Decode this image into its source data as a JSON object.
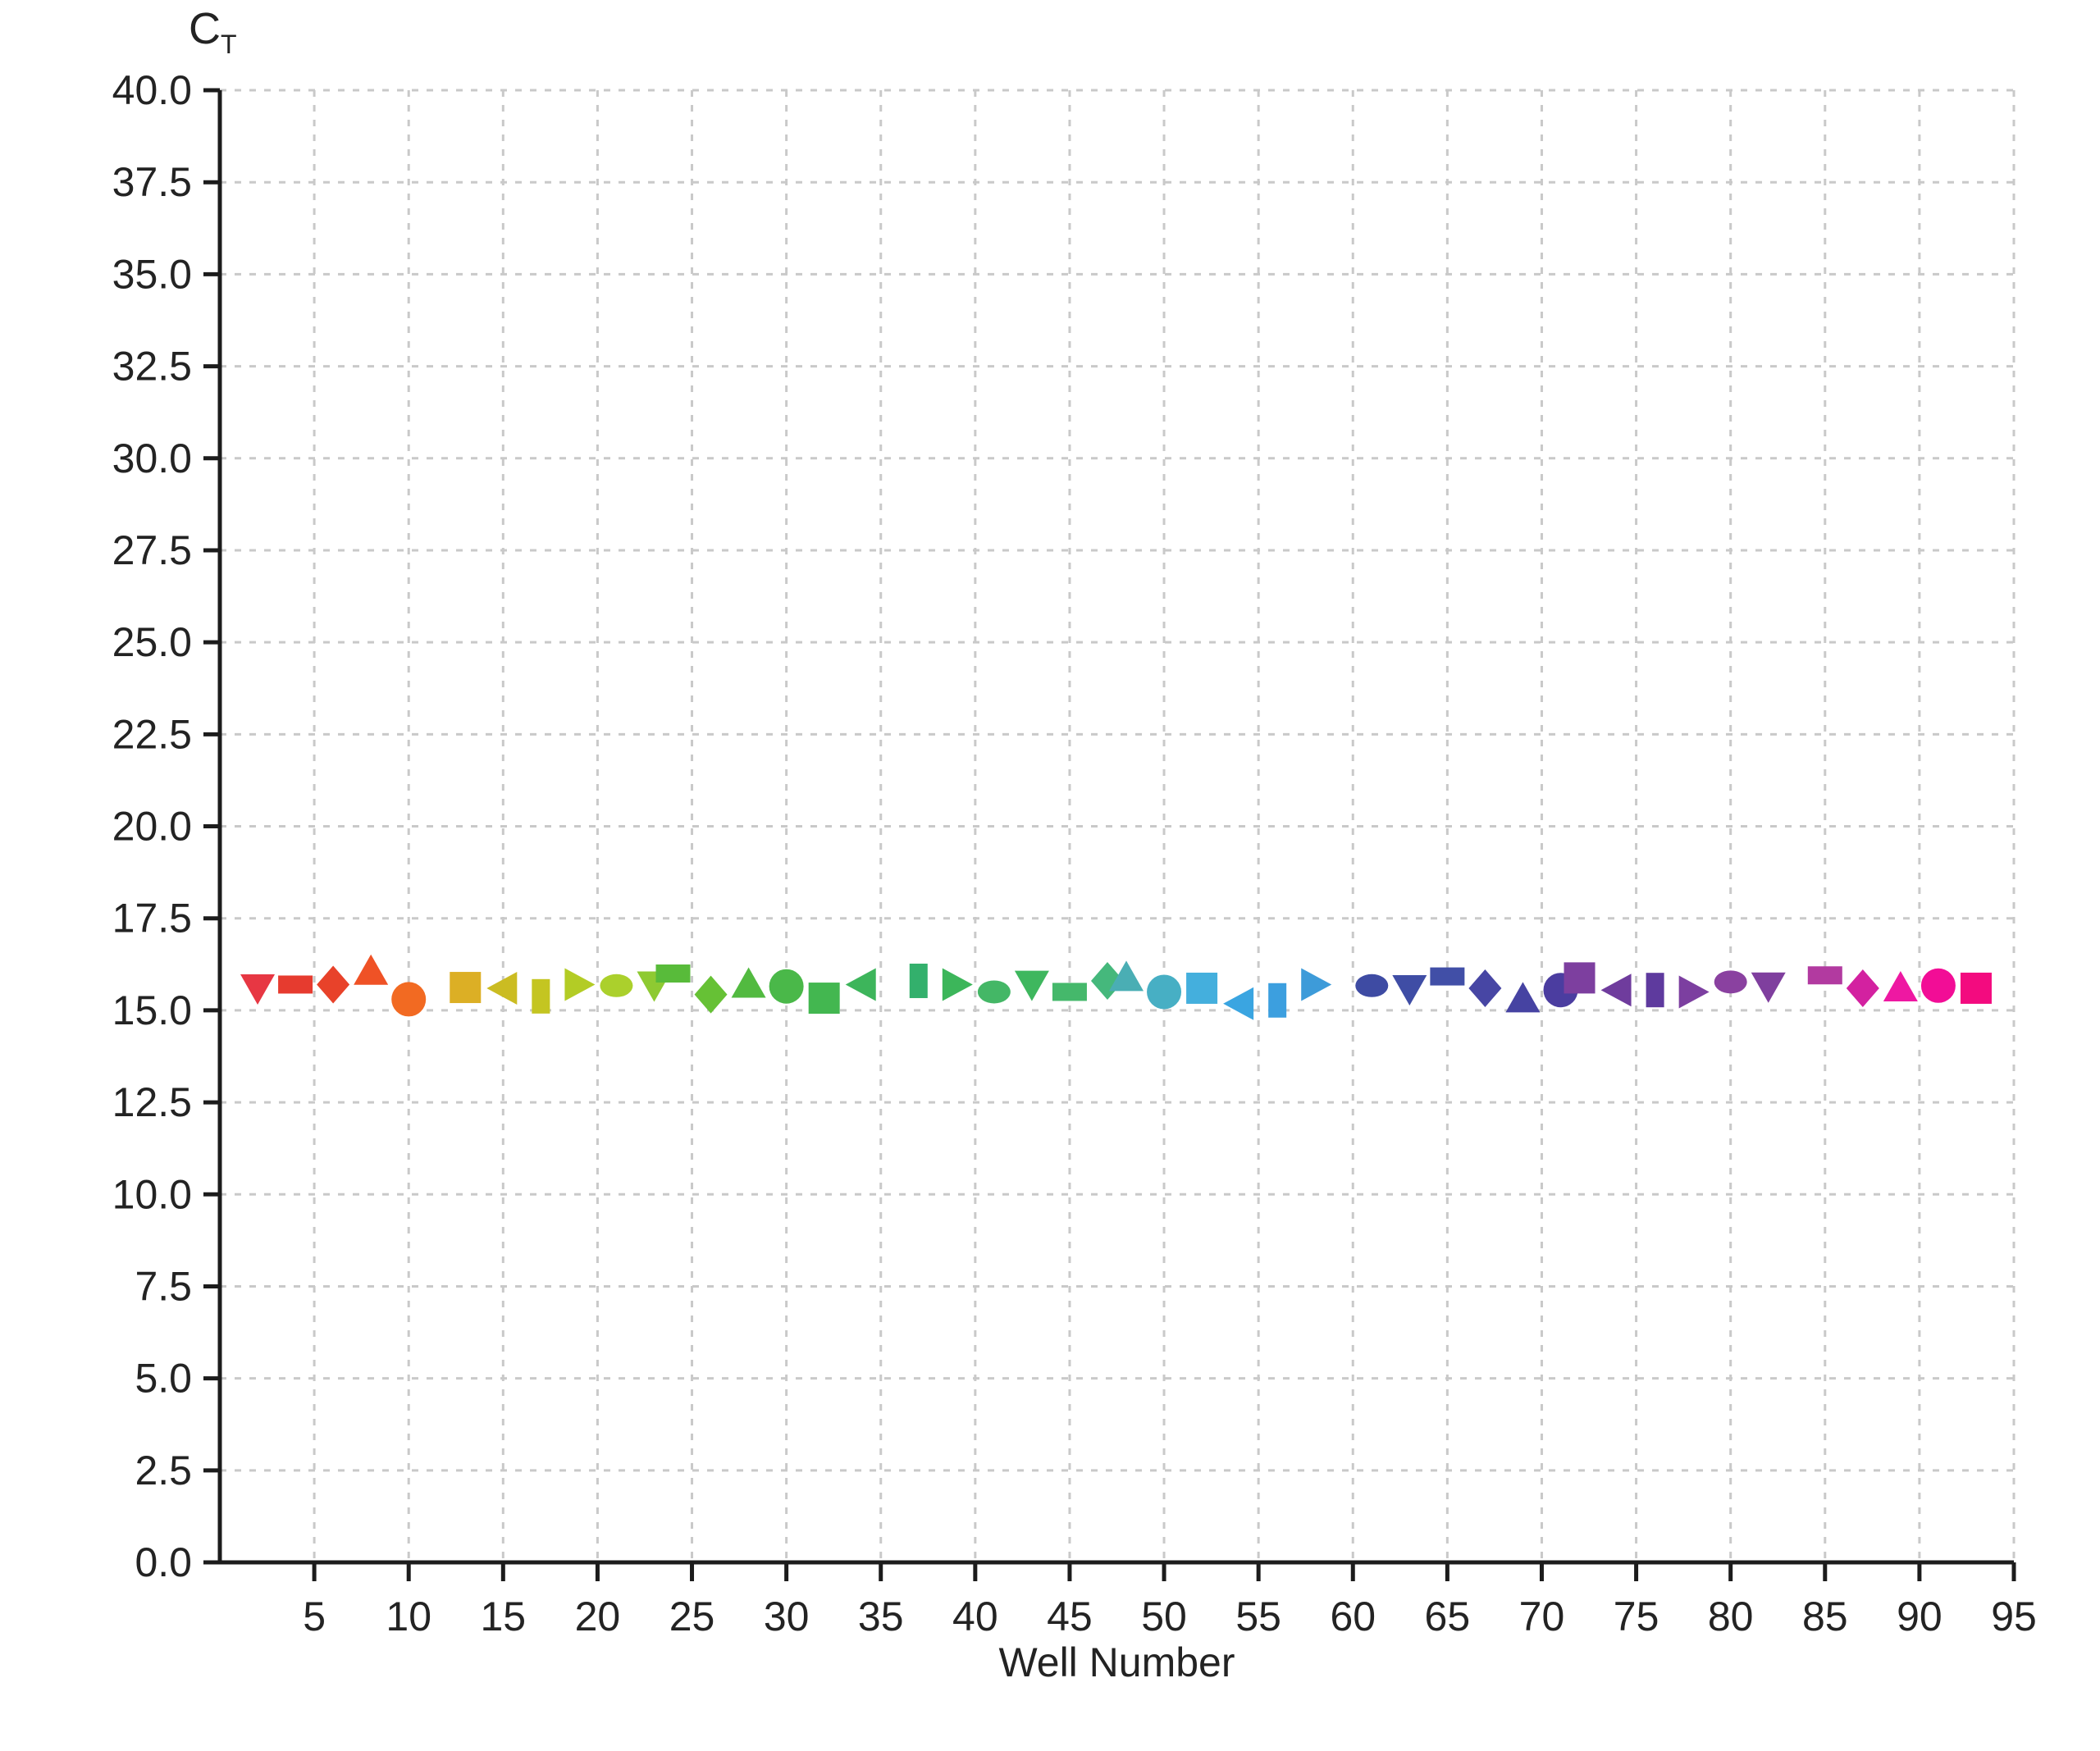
{
  "chart_data": {
    "type": "scatter",
    "title": "",
    "xlabel": "Well Number",
    "ylabel": "CT",
    "ylabel_main": "C",
    "ylabel_sub": "T",
    "xlim": [
      0,
      95
    ],
    "ylim": [
      0,
      40
    ],
    "grid": "dashed",
    "legend": "none",
    "x_ticks": [
      5,
      10,
      15,
      20,
      25,
      30,
      35,
      40,
      45,
      50,
      55,
      60,
      65,
      70,
      75,
      80,
      85,
      90,
      95
    ],
    "x_tick_labels": [
      "5",
      "10",
      "15",
      "20",
      "25",
      "30",
      "35",
      "40",
      "45",
      "50",
      "55",
      "60",
      "65",
      "70",
      "75",
      "80",
      "85",
      "90",
      "95"
    ],
    "y_ticks": [
      0,
      2.5,
      5,
      7.5,
      10,
      12.5,
      15,
      17.5,
      20,
      22.5,
      25,
      27.5,
      30,
      32.5,
      35,
      37.5,
      40
    ],
    "y_tick_labels": [
      "0.0",
      "2.5",
      "5.0",
      "7.5",
      "10.0",
      "12.5",
      "15.0",
      "17.5",
      "20.0",
      "22.5",
      "25.0",
      "27.5",
      "30.0",
      "32.5",
      "35.0",
      "37.5",
      "40.0"
    ],
    "points": [
      {
        "well": 2,
        "ct": 15.62,
        "shape": "triangle-down",
        "color": "#e73743"
      },
      {
        "well": 4,
        "ct": 15.7,
        "shape": "hbar",
        "color": "#e63b2f"
      },
      {
        "well": 6,
        "ct": 15.7,
        "shape": "diamond",
        "color": "#e8422a"
      },
      {
        "well": 8,
        "ct": 16.05,
        "shape": "triangle-up",
        "color": "#ef5226"
      },
      {
        "well": 10,
        "ct": 15.3,
        "shape": "circle",
        "color": "#f26a22"
      },
      {
        "well": 13,
        "ct": 15.62,
        "shape": "square",
        "color": "#dcaf25"
      },
      {
        "well": 15,
        "ct": 15.6,
        "shape": "triangle-left",
        "color": "#cbbc22"
      },
      {
        "well": 17,
        "ct": 15.38,
        "shape": "vbar",
        "color": "#c4c521"
      },
      {
        "well": 19,
        "ct": 15.7,
        "shape": "triangle-right",
        "color": "#b3cc25"
      },
      {
        "well": 21,
        "ct": 15.67,
        "shape": "ellipse",
        "color": "#abd02c"
      },
      {
        "well": 23,
        "ct": 15.7,
        "shape": "triangle-down",
        "color": "#8eca32"
      },
      {
        "well": 24,
        "ct": 16.0,
        "shape": "hbar",
        "color": "#58bb3a"
      },
      {
        "well": 26,
        "ct": 15.43,
        "shape": "diamond",
        "color": "#66c135"
      },
      {
        "well": 28,
        "ct": 15.7,
        "shape": "triangle-up",
        "color": "#52ba40"
      },
      {
        "well": 30,
        "ct": 15.65,
        "shape": "circle",
        "color": "#4ab849"
      },
      {
        "well": 32,
        "ct": 15.33,
        "shape": "square",
        "color": "#43b750"
      },
      {
        "well": 34,
        "ct": 15.7,
        "shape": "triangle-left",
        "color": "#3db55b"
      },
      {
        "well": 37,
        "ct": 15.8,
        "shape": "vbar",
        "color": "#33b06c"
      },
      {
        "well": 39,
        "ct": 15.7,
        "shape": "triangle-right",
        "color": "#3cb65a"
      },
      {
        "well": 41,
        "ct": 15.5,
        "shape": "ellipse",
        "color": "#44b766"
      },
      {
        "well": 43,
        "ct": 15.72,
        "shape": "triangle-down",
        "color": "#3eb75e"
      },
      {
        "well": 45,
        "ct": 15.5,
        "shape": "hbar",
        "color": "#45b86b"
      },
      {
        "well": 47,
        "ct": 15.8,
        "shape": "diamond",
        "color": "#45b87c"
      },
      {
        "well": 48,
        "ct": 15.88,
        "shape": "triangle-up",
        "color": "#4aaeb4"
      },
      {
        "well": 50,
        "ct": 15.5,
        "shape": "circle",
        "color": "#47afc4"
      },
      {
        "well": 52,
        "ct": 15.6,
        "shape": "square",
        "color": "#44afdd"
      },
      {
        "well": 54,
        "ct": 15.18,
        "shape": "triangle-left",
        "color": "#3aa5e1"
      },
      {
        "well": 56,
        "ct": 15.27,
        "shape": "vbar",
        "color": "#3c9fdf"
      },
      {
        "well": 58,
        "ct": 15.7,
        "shape": "triangle-right",
        "color": "#3d9bd9"
      },
      {
        "well": 61,
        "ct": 15.67,
        "shape": "ellipse",
        "color": "#3e4ba3"
      },
      {
        "well": 63,
        "ct": 15.6,
        "shape": "triangle-down",
        "color": "#3f4da5"
      },
      {
        "well": 65,
        "ct": 15.92,
        "shape": "hbar",
        "color": "#414fa7"
      },
      {
        "well": 67,
        "ct": 15.6,
        "shape": "diamond",
        "color": "#4746a4"
      },
      {
        "well": 69,
        "ct": 15.3,
        "shape": "triangle-up",
        "color": "#4643a2"
      },
      {
        "well": 71,
        "ct": 15.55,
        "shape": "circle",
        "color": "#4b3da0"
      },
      {
        "well": 72,
        "ct": 15.88,
        "shape": "square",
        "color": "#7d3f9f"
      },
      {
        "well": 74,
        "ct": 15.55,
        "shape": "triangle-left",
        "color": "#6f3c9d"
      },
      {
        "well": 76,
        "ct": 15.55,
        "shape": "vbar",
        "color": "#5e3a9e"
      },
      {
        "well": 78,
        "ct": 15.5,
        "shape": "triangle-right",
        "color": "#7c3fa0"
      },
      {
        "well": 80,
        "ct": 15.77,
        "shape": "ellipse",
        "color": "#8a41a0"
      },
      {
        "well": 82,
        "ct": 15.67,
        "shape": "triangle-down",
        "color": "#7f3f9e"
      },
      {
        "well": 85,
        "ct": 15.95,
        "shape": "hbar",
        "color": "#b23aa0"
      },
      {
        "well": 87,
        "ct": 15.6,
        "shape": "diamond",
        "color": "#d321a0"
      },
      {
        "well": 89,
        "ct": 15.6,
        "shape": "triangle-up",
        "color": "#ee18a2"
      },
      {
        "well": 91,
        "ct": 15.67,
        "shape": "circle",
        "color": "#f20d96"
      },
      {
        "well": 93,
        "ct": 15.6,
        "shape": "square",
        "color": "#f30b7f"
      }
    ],
    "colors": {
      "axis": "#1c1c1c",
      "grid": "#c9c9c9",
      "text": "#232323"
    }
  }
}
